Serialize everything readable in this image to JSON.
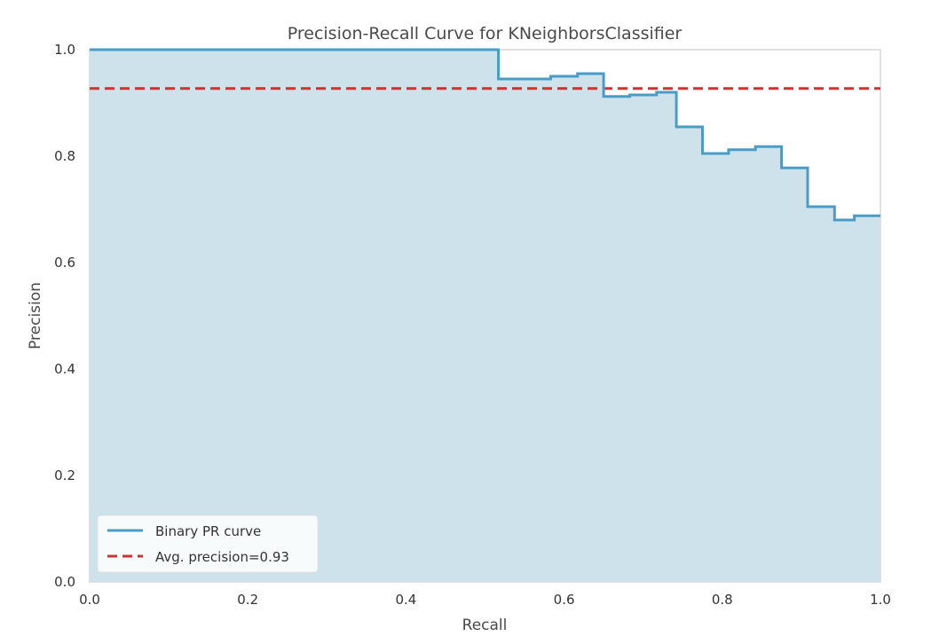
{
  "chart_data": {
    "type": "line",
    "title": "Precision-Recall Curve for KNeighborsClassifier",
    "xlabel": "Recall",
    "ylabel": "Precision",
    "xlim": [
      0.0,
      1.0
    ],
    "ylim": [
      0.0,
      1.0
    ],
    "xticks": [
      "0.0",
      "0.2",
      "0.4",
      "0.6",
      "0.8",
      "1.0"
    ],
    "yticks": [
      "0.0",
      "0.2",
      "0.4",
      "0.6",
      "0.8",
      "1.0"
    ],
    "grid": false,
    "legend_position": "lower-left",
    "series": [
      {
        "name": "Binary PR curve",
        "style": "step",
        "color": "#4a9cc7",
        "fill_color": "#cde2ea",
        "points": [
          [
            0.0,
            1.0
          ],
          [
            0.517,
            1.0
          ],
          [
            0.517,
            0.945
          ],
          [
            0.583,
            0.95
          ],
          [
            0.617,
            0.955
          ],
          [
            0.65,
            0.912
          ],
          [
            0.683,
            0.915
          ],
          [
            0.717,
            0.92
          ],
          [
            0.742,
            0.855
          ],
          [
            0.775,
            0.805
          ],
          [
            0.808,
            0.812
          ],
          [
            0.842,
            0.818
          ],
          [
            0.875,
            0.778
          ],
          [
            0.908,
            0.705
          ],
          [
            0.942,
            0.68
          ],
          [
            0.967,
            0.688
          ],
          [
            1.0,
            0.688
          ]
        ]
      },
      {
        "name": "Avg. precision=0.93",
        "style": "dashed",
        "color": "#cc3333",
        "y": 0.927
      }
    ]
  }
}
